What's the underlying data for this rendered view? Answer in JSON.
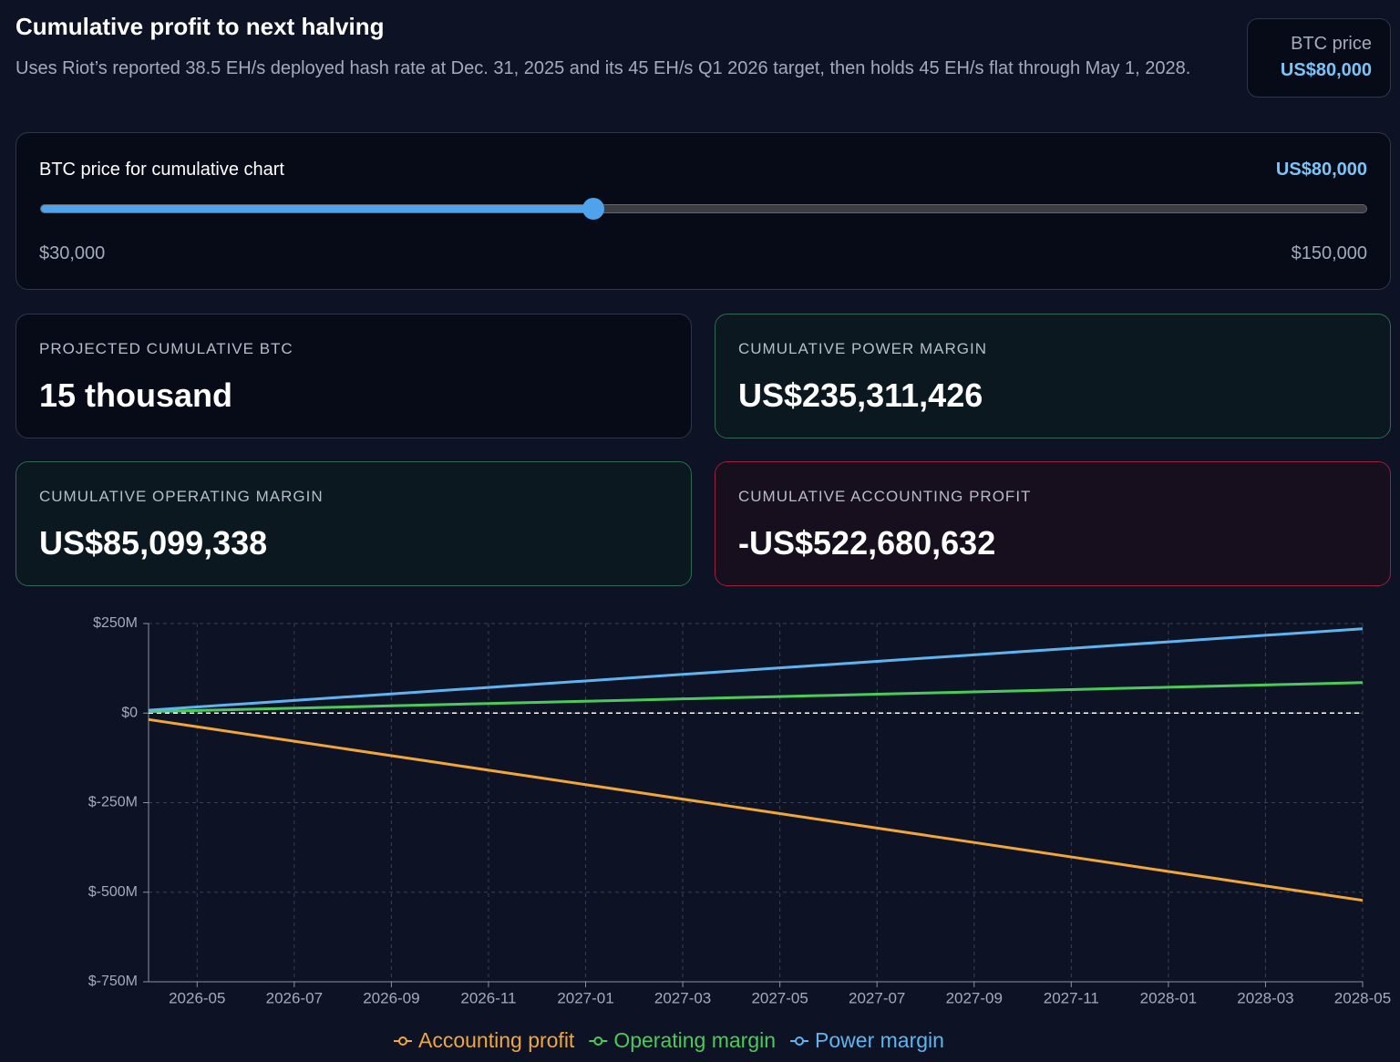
{
  "header": {
    "title": "Cumulative profit to next halving",
    "subtitle": "Uses Riot’s reported 38.5 EH/s deployed hash rate at Dec. 31, 2025 and its 45 EH/s Q1 2026 target, then holds 45 EH/s flat through May 1, 2028."
  },
  "price_badge": {
    "label": "BTC price",
    "value": "US$80,000"
  },
  "slider": {
    "label": "BTC price for cumulative chart",
    "value": {
      "value": 80000,
      "label": "US$80,000"
    },
    "min": {
      "value": 30000,
      "label": "$30,000"
    },
    "max": {
      "value": 150000,
      "label": "$150,000"
    }
  },
  "cards": [
    {
      "label": "PROJECTED CUMULATIVE BTC",
      "value": "15 thousand",
      "tone": "neutral"
    },
    {
      "label": "CUMULATIVE POWER MARGIN",
      "value": "US$235,311,426",
      "tone": "positive"
    },
    {
      "label": "CUMULATIVE OPERATING MARGIN",
      "value": "US$85,099,338",
      "tone": "positive"
    },
    {
      "label": "CUMULATIVE ACCOUNTING PROFIT",
      "value": "-US$522,680,632",
      "tone": "negative"
    }
  ],
  "chart_data": {
    "type": "line",
    "x": [
      "2026-04",
      "2026-05",
      "2026-06",
      "2026-07",
      "2026-08",
      "2026-09",
      "2026-10",
      "2026-11",
      "2026-12",
      "2027-01",
      "2027-02",
      "2027-03",
      "2027-04",
      "2027-05",
      "2027-06",
      "2027-07",
      "2027-08",
      "2027-09",
      "2027-10",
      "2027-11",
      "2027-12",
      "2028-01",
      "2028-02",
      "2028-03",
      "2028-04",
      "2028-05"
    ],
    "xlim": [
      "2026-04",
      "2028-05"
    ],
    "xticks": [
      "2026-05",
      "2026-07",
      "2026-09",
      "2026-11",
      "2027-01",
      "2027-03",
      "2027-05",
      "2027-07",
      "2027-09",
      "2027-11",
      "2028-01",
      "2028-03",
      "2028-05"
    ],
    "ylim": [
      -750,
      250
    ],
    "yticks": [
      {
        "value": 250,
        "label": "$250M"
      },
      {
        "value": 0,
        "label": "$0"
      },
      {
        "value": -250,
        "label": "$-250M"
      },
      {
        "value": -500,
        "label": "$-500M"
      },
      {
        "value": -750,
        "label": "$-750M"
      }
    ],
    "grid": true,
    "zero_line": true,
    "series": [
      {
        "name": "Accounting profit",
        "color": "#f0a63a",
        "values": [
          -18.0,
          -38.2,
          -58.4,
          -78.6,
          -98.8,
          -118.9,
          -139.1,
          -159.3,
          -179.5,
          -199.7,
          -219.9,
          -240.1,
          -260.3,
          -280.5,
          -300.7,
          -320.9,
          -341.0,
          -361.2,
          -381.4,
          -401.6,
          -421.8,
          -442.0,
          -462.2,
          -482.4,
          -502.5,
          -522.7
        ]
      },
      {
        "name": "Operating margin",
        "color": "#4cc95a",
        "values": [
          4.0,
          7.2,
          10.5,
          13.7,
          17.0,
          20.2,
          23.5,
          26.7,
          30.0,
          33.2,
          36.4,
          39.7,
          42.9,
          46.2,
          49.4,
          52.7,
          55.9,
          59.1,
          62.4,
          65.6,
          68.9,
          72.1,
          75.4,
          78.6,
          81.9,
          85.1
        ]
      },
      {
        "name": "Power margin",
        "color": "#5fb4f0",
        "values": [
          8.0,
          17.1,
          26.2,
          35.3,
          44.4,
          53.5,
          62.6,
          71.6,
          80.7,
          89.8,
          98.9,
          108.0,
          117.1,
          126.2,
          135.3,
          144.4,
          153.5,
          162.6,
          171.7,
          180.7,
          189.8,
          198.9,
          208.0,
          217.1,
          226.2,
          235.3
        ]
      }
    ]
  }
}
